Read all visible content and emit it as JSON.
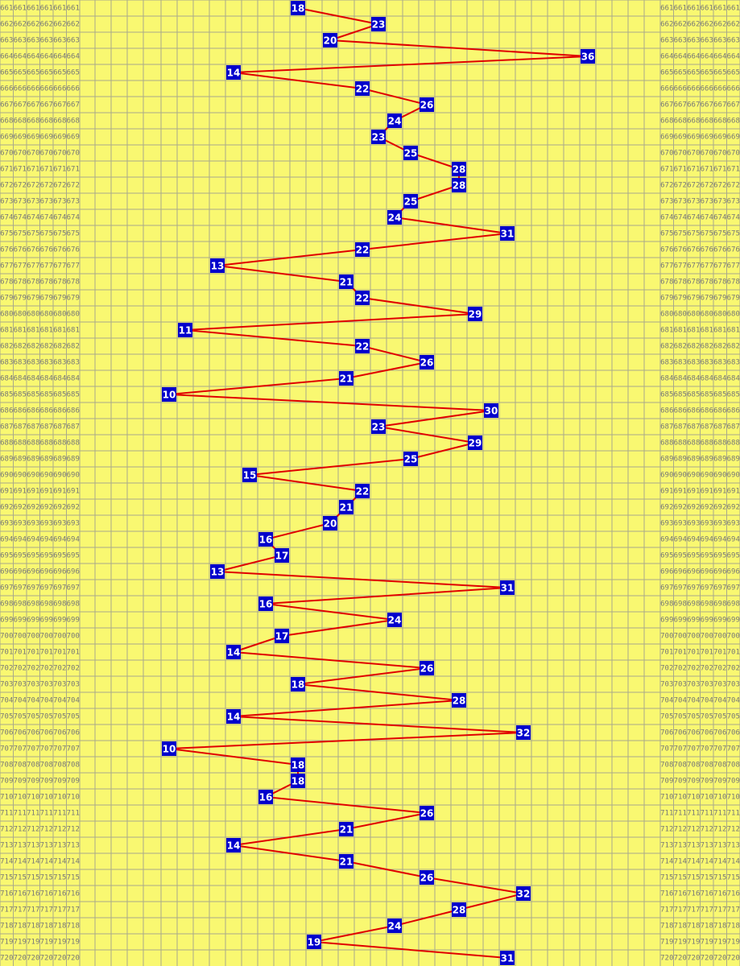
{
  "rows": [
    {
      "issue": "661",
      "number": 18
    },
    {
      "issue": "662",
      "number": 23
    },
    {
      "issue": "663",
      "number": 20
    },
    {
      "issue": "664",
      "number": 36
    },
    {
      "issue": "665",
      "number": 14
    },
    {
      "issue": "666",
      "number": 22
    },
    {
      "issue": "667",
      "number": 26
    },
    {
      "issue": "668",
      "number": 24
    },
    {
      "issue": "669",
      "number": 23
    },
    {
      "issue": "670",
      "number": 25
    },
    {
      "issue": "671",
      "number": 28
    },
    {
      "issue": "672",
      "number": 28
    },
    {
      "issue": "673",
      "number": 25
    },
    {
      "issue": "674",
      "number": 24
    },
    {
      "issue": "675",
      "number": 31
    },
    {
      "issue": "676",
      "number": 22
    },
    {
      "issue": "677",
      "number": 13
    },
    {
      "issue": "678",
      "number": 21
    },
    {
      "issue": "679",
      "number": 22
    },
    {
      "issue": "680",
      "number": 29
    },
    {
      "issue": "681",
      "number": 11
    },
    {
      "issue": "682",
      "number": 22
    },
    {
      "issue": "683",
      "number": 26
    },
    {
      "issue": "684",
      "number": 21
    },
    {
      "issue": "685",
      "number": 10
    },
    {
      "issue": "686",
      "number": 30
    },
    {
      "issue": "687",
      "number": 23
    },
    {
      "issue": "688",
      "number": 29
    },
    {
      "issue": "689",
      "number": 25
    },
    {
      "issue": "690",
      "number": 15
    },
    {
      "issue": "691",
      "number": 22
    },
    {
      "issue": "692",
      "number": 21
    },
    {
      "issue": "693",
      "number": 20
    },
    {
      "issue": "694",
      "number": 16
    },
    {
      "issue": "695",
      "number": 17
    },
    {
      "issue": "696",
      "number": 13
    },
    {
      "issue": "697",
      "number": 31
    },
    {
      "issue": "698",
      "number": 16
    },
    {
      "issue": "699",
      "number": 24
    },
    {
      "issue": "700",
      "number": 17
    },
    {
      "issue": "701",
      "number": 14
    },
    {
      "issue": "702",
      "number": 26
    },
    {
      "issue": "703",
      "number": 18
    },
    {
      "issue": "704",
      "number": 28
    },
    {
      "issue": "705",
      "number": 14
    },
    {
      "issue": "706",
      "number": 32
    },
    {
      "issue": "707",
      "number": 10
    },
    {
      "issue": "708",
      "number": 18
    },
    {
      "issue": "709",
      "number": 18
    },
    {
      "issue": "710",
      "number": 16
    },
    {
      "issue": "711",
      "number": 26
    },
    {
      "issue": "712",
      "number": 21
    },
    {
      "issue": "713",
      "number": 14
    },
    {
      "issue": "714",
      "number": 21
    },
    {
      "issue": "715",
      "number": 26
    },
    {
      "issue": "716",
      "number": 32
    },
    {
      "issue": "717",
      "number": 28
    },
    {
      "issue": "718",
      "number": 24
    },
    {
      "issue": "719",
      "number": 19
    },
    {
      "issue": "720",
      "number": 31
    }
  ]
}
